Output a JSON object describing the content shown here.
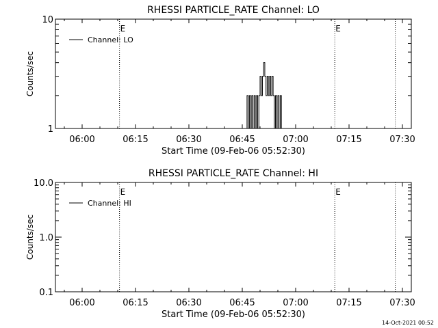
{
  "chart_data": [
    {
      "type": "line",
      "title": "RHESSI PARTICLE_RATE Channel: LO",
      "xlabel": "Start Time (09-Feb-06 05:52:30)",
      "ylabel": "Counts/sec",
      "yscale": "log",
      "xlim": [
        "05:52:30",
        "07:32:30"
      ],
      "ylim": [
        1,
        10
      ],
      "x_ticks": [
        "06:00",
        "06:15",
        "06:30",
        "06:45",
        "07:00",
        "07:15",
        "07:30"
      ],
      "y_ticks": [
        "1",
        "10"
      ],
      "legend": {
        "entries": [
          "Channel: LO"
        ],
        "position": "top-left"
      },
      "event_lines": [
        {
          "time": "06:10:30",
          "label": "E"
        },
        {
          "time": "07:11:00",
          "label": "E"
        },
        {
          "time": "07:28:00",
          "label": ""
        }
      ],
      "series": [
        {
          "name": "Channel: LO",
          "points": [
            [
              "06:46:00",
              1
            ],
            [
              "06:46:20",
              2
            ],
            [
              "06:46:40",
              1
            ],
            [
              "06:47:00",
              2
            ],
            [
              "06:47:20",
              1
            ],
            [
              "06:47:40",
              2
            ],
            [
              "06:48:00",
              1
            ],
            [
              "06:48:20",
              2
            ],
            [
              "06:48:40",
              1
            ],
            [
              "06:49:00",
              2
            ],
            [
              "06:49:20",
              1
            ],
            [
              "06:49:40",
              2
            ],
            [
              "06:50:00",
              3
            ],
            [
              "06:50:20",
              2
            ],
            [
              "06:50:40",
              3
            ],
            [
              "06:51:00",
              4
            ],
            [
              "06:51:20",
              3
            ],
            [
              "06:51:40",
              2
            ],
            [
              "06:52:00",
              3
            ],
            [
              "06:52:20",
              2
            ],
            [
              "06:52:40",
              3
            ],
            [
              "06:53:00",
              2
            ],
            [
              "06:53:20",
              3
            ],
            [
              "06:53:40",
              2
            ],
            [
              "06:54:00",
              1
            ],
            [
              "06:54:20",
              2
            ],
            [
              "06:54:40",
              1
            ],
            [
              "06:55:00",
              2
            ],
            [
              "06:55:20",
              1
            ],
            [
              "06:55:40",
              2
            ],
            [
              "06:56:00",
              1
            ]
          ]
        }
      ]
    },
    {
      "type": "line",
      "title": "RHESSI PARTICLE_RATE Channel: HI",
      "xlabel": "Start Time (09-Feb-06 05:52:30)",
      "ylabel": "Counts/sec",
      "yscale": "log",
      "xlim": [
        "05:52:30",
        "07:32:30"
      ],
      "ylim": [
        0.1,
        10
      ],
      "x_ticks": [
        "06:00",
        "06:15",
        "06:30",
        "06:45",
        "07:00",
        "07:15",
        "07:30"
      ],
      "y_ticks": [
        "0.1",
        "1.0",
        "10.0"
      ],
      "legend": {
        "entries": [
          "Channel: HI"
        ],
        "position": "top-left"
      },
      "event_lines": [
        {
          "time": "06:10:30",
          "label": "E"
        },
        {
          "time": "07:11:00",
          "label": "E"
        },
        {
          "time": "07:28:00",
          "label": ""
        }
      ],
      "series": [
        {
          "name": "Channel: HI",
          "points": []
        }
      ]
    }
  ],
  "footer": {
    "timestamp": "14-Oct-2021 00:52"
  }
}
